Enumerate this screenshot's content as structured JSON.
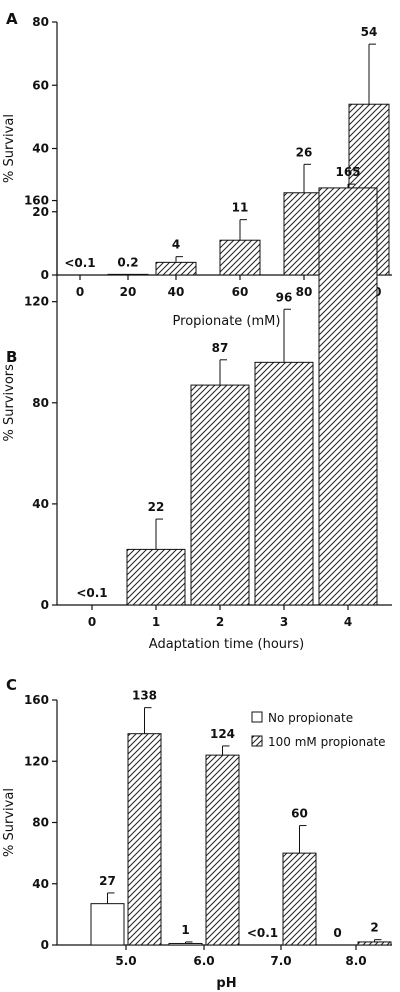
{
  "chart_data": [
    {
      "panel_label": "A",
      "type": "bar",
      "ylabel": "% Survival",
      "xlabel": "Propionate (mM)",
      "ylim": [
        0,
        80
      ],
      "yticks": [
        "0",
        "20",
        "40",
        "60",
        "80"
      ],
      "categories": [
        "0",
        "20",
        "40",
        "60",
        "80",
        "100"
      ],
      "series": [
        {
          "values": [
            0.05,
            0.2,
            4,
            11,
            26,
            54
          ],
          "errors": [
            0,
            0,
            1.8,
            6.5,
            9,
            19
          ],
          "labels": [
            "<0.1",
            "0.2",
            "4",
            "11",
            "26",
            "54"
          ],
          "pattern": "hatched"
        }
      ]
    },
    {
      "panel_label": "B",
      "type": "bar",
      "ylabel": "% Survivors",
      "xlabel": "Adaptation time (hours)",
      "ylim": [
        0,
        180
      ],
      "yticks": [
        "0",
        "40",
        "80",
        "120",
        "160"
      ],
      "categories": [
        "0",
        "1",
        "2",
        "3",
        "4"
      ],
      "series": [
        {
          "values": [
            0.05,
            22,
            87,
            96,
            165
          ],
          "errors": [
            0,
            12,
            10,
            21,
            1.5
          ],
          "labels": [
            "<0.1",
            "22",
            "87",
            "96",
            "165"
          ],
          "pattern": "hatched"
        }
      ]
    },
    {
      "panel_label": "C",
      "type": "bar",
      "ylabel": "% Survival",
      "xlabel": "pH",
      "ylim": [
        0,
        160
      ],
      "yticks": [
        "0",
        "40",
        "80",
        "120",
        "160"
      ],
      "categories": [
        "5.0",
        "6.0",
        "7.0",
        "8.0"
      ],
      "legend_position": "top-right",
      "series": [
        {
          "name": "No propionate",
          "values": [
            27,
            1,
            0.05,
            0
          ],
          "errors": [
            7,
            1,
            0,
            0
          ],
          "labels": [
            "27",
            "1",
            "<0.1",
            "0"
          ],
          "pattern": "open"
        },
        {
          "name": "100 mM propionate",
          "values": [
            138,
            124,
            60,
            2
          ],
          "errors": [
            17,
            6,
            18,
            1.5
          ],
          "labels": [
            "138",
            "124",
            "60",
            "2"
          ],
          "pattern": "hatched"
        }
      ]
    }
  ]
}
